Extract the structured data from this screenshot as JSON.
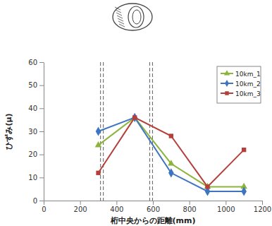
{
  "chart_data": {
    "type": "line",
    "x_label": "桁中央からの距離(mm)",
    "y_label": "ひずみ(μ)",
    "x": [
      300,
      500,
      700,
      900,
      1100
    ],
    "series": [
      {
        "name": "10km_1",
        "color": "#8db43c",
        "marker": "triangle",
        "values": [
          24,
          36,
          16,
          6,
          6
        ]
      },
      {
        "name": "10km_2",
        "color": "#3f74c0",
        "marker": "diamond",
        "values": [
          30,
          36,
          12,
          4,
          4
        ]
      },
      {
        "name": "10km_3",
        "color": "#b5403b",
        "marker": "square",
        "values": [
          12,
          36,
          28,
          6,
          22
        ]
      }
    ],
    "vlines": [
      320,
      590
    ],
    "xlim": [
      0,
      1200
    ],
    "xticks": [
      0,
      200,
      400,
      600,
      800,
      1000,
      1200
    ],
    "ylim": [
      0,
      60
    ],
    "yticks": [
      0,
      10,
      20,
      30,
      40,
      50,
      60
    ],
    "grid": false,
    "legend": "upper-right"
  }
}
